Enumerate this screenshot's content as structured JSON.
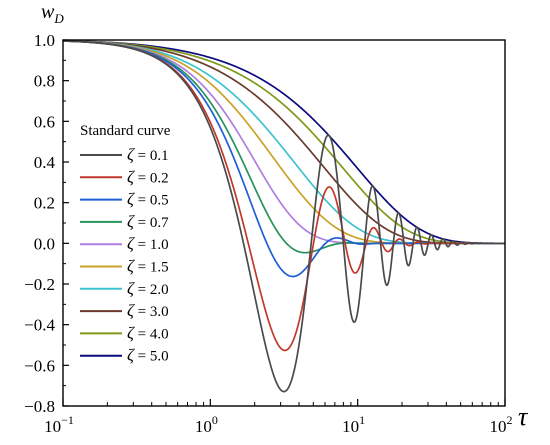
{
  "chart_data": {
    "type": "line",
    "xlabel": "τ",
    "ylabel": "w",
    "ylabel_sub": "D",
    "x_scale": "log",
    "xlim": [
      0.1,
      100
    ],
    "ylim": [
      -0.8,
      1.0
    ],
    "x_ticks": [
      {
        "value": 0.1,
        "base": "10",
        "exp": "−1"
      },
      {
        "value": 1,
        "base": "10",
        "exp": "0"
      },
      {
        "value": 10,
        "base": "10",
        "exp": "1"
      },
      {
        "value": 100,
        "base": "10",
        "exp": "2"
      }
    ],
    "y_ticks": [
      "-0.8",
      "-0.6",
      "-0.4",
      "-0.2",
      "0.0",
      "0.2",
      "0.4",
      "0.6",
      "0.8",
      "1.0"
    ],
    "grid": false,
    "legend_title": "Standard curve",
    "legend_position": "center-left",
    "series": [
      {
        "name": "ζ = 0.1",
        "zeta": 0.1,
        "color": "#4a4a4a"
      },
      {
        "name": "ζ = 0.2",
        "zeta": 0.2,
        "color": "#c0392b"
      },
      {
        "name": "ζ = 0.5",
        "zeta": 0.5,
        "color": "#1f5fd6"
      },
      {
        "name": "ζ = 0.7",
        "zeta": 0.7,
        "color": "#27935a"
      },
      {
        "name": "ζ = 1.0",
        "zeta": 1.0,
        "color": "#b07ee0"
      },
      {
        "name": "ζ = 1.5",
        "zeta": 1.5,
        "color": "#c9a227"
      },
      {
        "name": "ζ = 2.0",
        "zeta": 2.0,
        "color": "#3cc3cf"
      },
      {
        "name": "ζ = 3.0",
        "zeta": 3.0,
        "color": "#6b3a2e"
      },
      {
        "name": "ζ = 4.0",
        "zeta": 4.0,
        "color": "#7f9a1a"
      },
      {
        "name": "ζ = 5.0",
        "zeta": 5.0,
        "color": "#0b0b80"
      }
    ]
  }
}
